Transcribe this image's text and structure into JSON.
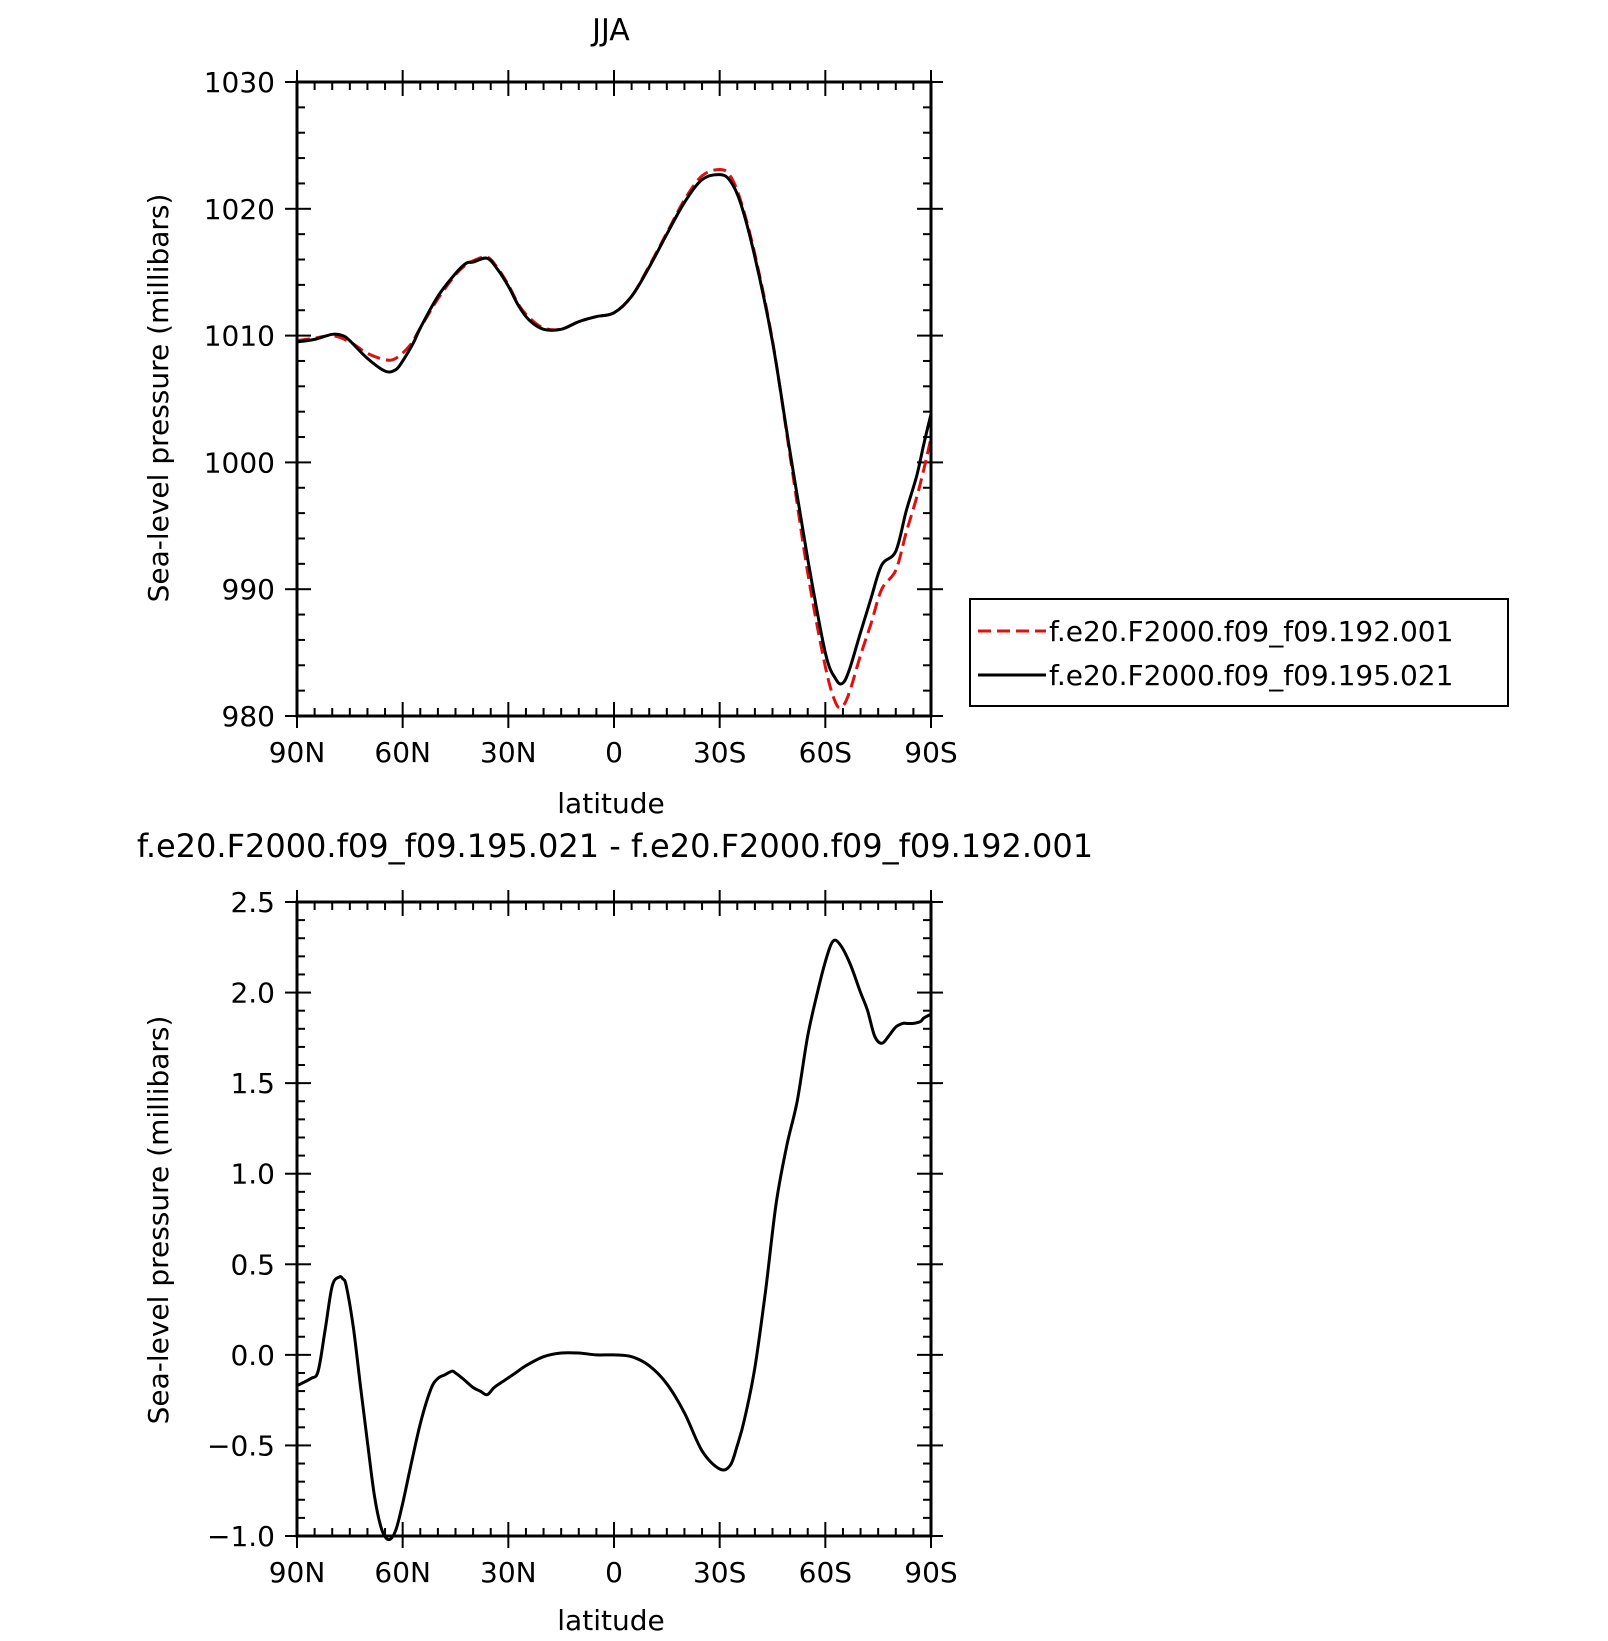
{
  "chart_data": [
    {
      "type": "line",
      "title": "JJA",
      "xlabel": "latitude",
      "ylabel": "Sea-level pressure (millibars)",
      "xlim": [
        90,
        -90
      ],
      "ylim": [
        980,
        1030
      ],
      "x_ticks": [
        90,
        60,
        30,
        0,
        -30,
        -60,
        -90
      ],
      "x_tick_labels": [
        "90N",
        "60N",
        "30N",
        "0",
        "30S",
        "60S",
        "90S"
      ],
      "y_ticks": [
        980,
        990,
        1000,
        1010,
        1020,
        1030
      ],
      "y_tick_labels": [
        "980",
        "990",
        "1000",
        "1010",
        "1020",
        "1030"
      ],
      "legend_position": "right",
      "series": [
        {
          "name": "f.e20.F2000.f09_f09.192.001",
          "color": "#e01010",
          "dash": "dashed",
          "x": [
            90,
            85,
            80,
            75,
            70,
            65,
            62,
            58,
            55,
            50,
            45,
            42,
            40,
            36,
            33,
            30,
            27,
            24,
            20,
            15,
            10,
            5,
            0,
            -5,
            -10,
            -15,
            -20,
            -25,
            -30,
            -33,
            -36,
            -40,
            -45,
            -50,
            -55,
            -60,
            -63,
            -65,
            -67,
            -70,
            -73,
            -76,
            -80,
            -83,
            -86,
            -88,
            -90
          ],
          "y": [
            1009.6,
            1009.8,
            1010.0,
            1009.5,
            1008.6,
            1008.1,
            1008.2,
            1009.2,
            1010.6,
            1012.9,
            1014.8,
            1015.6,
            1015.9,
            1016.2,
            1015.3,
            1014.0,
            1012.4,
            1011.4,
            1010.6,
            1010.5,
            1011.1,
            1011.5,
            1011.8,
            1013.1,
            1015.5,
            1018.1,
            1020.7,
            1022.6,
            1023.1,
            1022.6,
            1020.6,
            1016.4,
            1009.6,
            1000.5,
            991.3,
            983.9,
            981.0,
            980.8,
            982.0,
            984.8,
            987.3,
            990.0,
            991.5,
            994.5,
            997.3,
            999.5,
            1001.9
          ]
        },
        {
          "name": "f.e20.F2000.f09_f09.195.021",
          "color": "#000000",
          "dash": "solid",
          "x": [
            90,
            85,
            80,
            77,
            75,
            70,
            65,
            62,
            60,
            57,
            55,
            50,
            45,
            42,
            40,
            36,
            33,
            30,
            27,
            24,
            20,
            15,
            10,
            5,
            0,
            -5,
            -10,
            -15,
            -20,
            -25,
            -30,
            -33,
            -36,
            -40,
            -45,
            -50,
            -55,
            -60,
            -63,
            -65,
            -67,
            -70,
            -73,
            -76,
            -80,
            -83,
            -86,
            -88,
            -90
          ],
          "y": [
            1009.5,
            1009.7,
            1010.1,
            1010.0,
            1009.6,
            1008.2,
            1007.2,
            1007.3,
            1008.0,
            1009.4,
            1010.6,
            1013.1,
            1014.9,
            1015.7,
            1015.8,
            1016.1,
            1015.2,
            1013.9,
            1012.3,
            1011.2,
            1010.5,
            1010.5,
            1011.1,
            1011.5,
            1011.8,
            1013.1,
            1015.4,
            1018.0,
            1020.5,
            1022.3,
            1022.7,
            1022.2,
            1020.4,
            1016.2,
            1009.5,
            1000.8,
            992.4,
            985.0,
            982.9,
            982.6,
            983.8,
            986.6,
            989.3,
            991.9,
            993.0,
            996.2,
            999.0,
            1001.5,
            1003.8
          ]
        }
      ]
    },
    {
      "type": "line",
      "title": "f.e20.F2000.f09_f09.195.021 - f.e20.F2000.f09_f09.192.001",
      "xlabel": "latitude",
      "ylabel": "Sea-level pressure (millibars)",
      "xlim": [
        90,
        -90
      ],
      "ylim": [
        -1.0,
        2.5
      ],
      "x_ticks": [
        90,
        60,
        30,
        0,
        -30,
        -60,
        -90
      ],
      "x_tick_labels": [
        "90N",
        "60N",
        "30N",
        "0",
        "30S",
        "60S",
        "90S"
      ],
      "y_ticks": [
        -1.0,
        -0.5,
        0.0,
        0.5,
        1.0,
        1.5,
        2.0,
        2.5
      ],
      "y_tick_labels": [
        "−1.0",
        "−0.5",
        "0.0",
        "0.5",
        "1.0",
        "1.5",
        "2.0",
        "2.5"
      ],
      "series": [
        {
          "color": "#000000",
          "dash": "solid",
          "x": [
            90,
            86,
            84,
            82,
            80,
            78,
            77,
            76,
            74,
            72,
            70,
            68,
            66,
            64,
            62,
            60,
            58,
            55,
            52,
            50,
            48,
            46,
            45,
            43,
            40,
            38,
            36,
            34,
            31,
            28,
            25,
            20,
            15,
            10,
            5,
            0,
            -5,
            -10,
            -15,
            -20,
            -25,
            -30,
            -33,
            -35,
            -37,
            -40,
            -43,
            -46,
            -49,
            -52,
            -55,
            -58,
            -60,
            -62,
            -64,
            -67,
            -70,
            -72,
            -74,
            -76,
            -78,
            -80,
            -82,
            -83,
            -85,
            -87,
            -88,
            -90
          ],
          "y": [
            -0.17,
            -0.13,
            -0.09,
            0.14,
            0.38,
            0.43,
            0.42,
            0.38,
            0.15,
            -0.17,
            -0.48,
            -0.78,
            -0.96,
            -1.02,
            -0.97,
            -0.82,
            -0.64,
            -0.38,
            -0.19,
            -0.13,
            -0.11,
            -0.09,
            -0.1,
            -0.13,
            -0.18,
            -0.2,
            -0.22,
            -0.18,
            -0.14,
            -0.1,
            -0.06,
            -0.01,
            0.01,
            0.01,
            0.0,
            0.0,
            -0.01,
            -0.06,
            -0.16,
            -0.32,
            -0.53,
            -0.63,
            -0.61,
            -0.5,
            -0.36,
            -0.07,
            0.35,
            0.83,
            1.15,
            1.4,
            1.76,
            2.02,
            2.17,
            2.28,
            2.27,
            2.16,
            2.0,
            1.9,
            1.76,
            1.72,
            1.76,
            1.81,
            1.83,
            1.83,
            1.83,
            1.84,
            1.86,
            1.88
          ]
        }
      ]
    }
  ]
}
